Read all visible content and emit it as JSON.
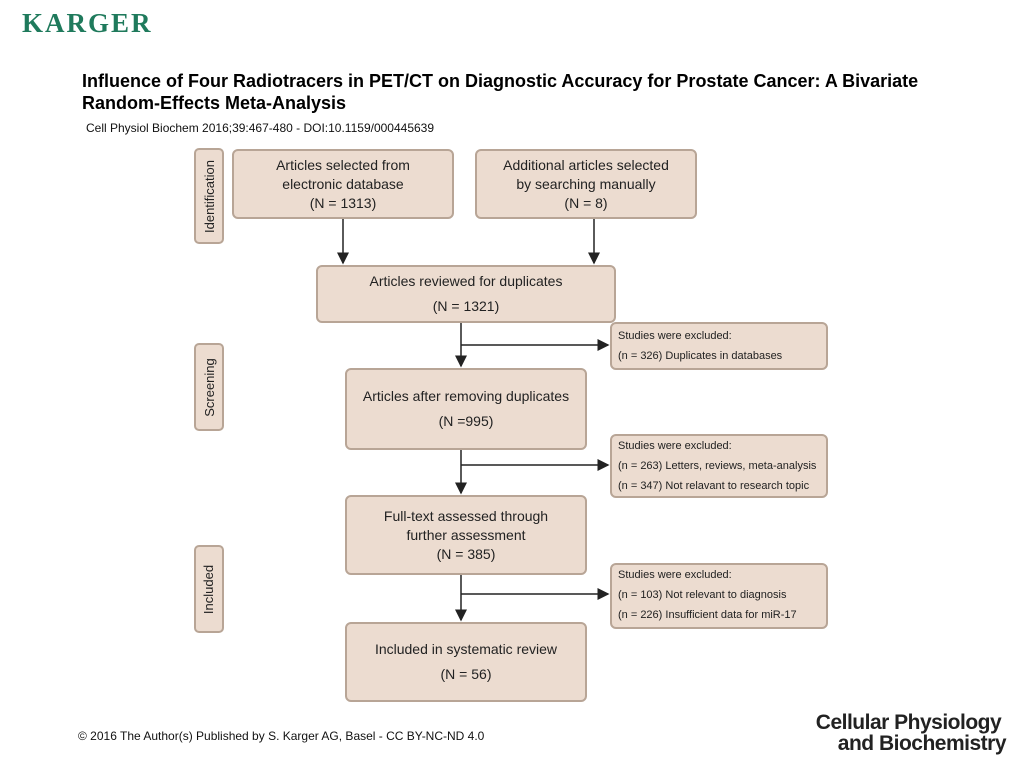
{
  "header": {
    "logo": "KARGER",
    "title": "Influence of Four Radiotracers in PET/CT on Diagnostic Accuracy for Prostate Cancer: A Bivariate Random-Effects Meta-Analysis",
    "citation": "Cell Physiol Biochem 2016;39:467-480 -  DOI:10.1159/000445639"
  },
  "stages": {
    "identification": "Identification",
    "screening": "Screening",
    "included": "Included"
  },
  "boxes": {
    "electronic": [
      "Articles selected from",
      "electronic database",
      "(N = 1313)"
    ],
    "manual": [
      "Additional articles selected",
      "by searching manually",
      "(N = 8)"
    ],
    "reviewed": [
      "Articles reviewed for duplicates",
      "(N = 1321)"
    ],
    "after_dup": [
      "Articles after removing duplicates",
      "(N =995)"
    ],
    "fulltext": [
      "Full-text assessed through",
      "further assessment",
      "(N = 385)"
    ],
    "included": [
      "Included in systematic review",
      "(N = 56)"
    ]
  },
  "exclusions": {
    "ex1": [
      "Studies were excluded:",
      "(n = 326) Duplicates in databases"
    ],
    "ex2": [
      "Studies were excluded:",
      "(n = 263) Letters, reviews, meta-analysis",
      "(n = 347)  Not relavant to research topic"
    ],
    "ex3": [
      "Studies were excluded:",
      "(n = 103) Not relevant to diagnosis",
      "(n = 226) Insufficient data for miR-17"
    ]
  },
  "footer": {
    "copyright": "© 2016 The Author(s) Published by S. Karger AG, Basel - CC BY-NC-ND 4.0",
    "journal_line1": "Cellular Physiology",
    "journal_line2": "and Biochemistry"
  }
}
